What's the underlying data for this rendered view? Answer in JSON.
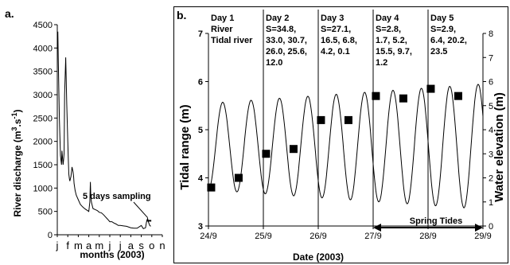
{
  "chart_data": [
    {
      "panel": "a.",
      "type": "line",
      "ylabel": "River discharge (m 3.s-1)",
      "ylabel_main": "River discharge (m",
      "ylabel_sup": "3",
      "ylabel_unit": ".s",
      "ylabel_sup2": "-1",
      "ylabel_close": ")",
      "xlabel": "months (2003)",
      "ylim": [
        0,
        4500
      ],
      "yticks": [
        "0",
        "500",
        "1000",
        "1500",
        "2000",
        "2500",
        "3000",
        "3500",
        "4000",
        "4500"
      ],
      "ytick_values": [
        0,
        500,
        1000,
        1500,
        2000,
        2500,
        3000,
        3500,
        4000,
        4500
      ],
      "xlim": [
        0,
        10
      ],
      "xticks": [
        "j",
        "f",
        "m",
        "a",
        "m",
        "j",
        "j",
        "a",
        "s",
        "o",
        "n"
      ],
      "annotation": "5 days sampling",
      "annotation_x": 8.6,
      "annotation_y": 300,
      "series": [
        {
          "x": [
            0,
            0.05,
            0.1,
            0.2,
            0.25,
            0.3,
            0.35,
            0.4,
            0.45,
            0.5,
            0.55,
            0.6,
            0.65,
            0.7,
            0.8,
            0.9,
            1.0,
            1.05,
            1.1,
            1.15,
            1.2,
            1.3,
            1.4,
            1.5,
            1.55,
            1.6,
            1.7,
            1.8,
            1.9,
            2.0,
            2.1,
            2.2,
            2.4,
            2.6,
            2.8,
            3.0,
            3.1,
            3.15,
            3.2,
            3.25,
            3.3,
            3.4,
            3.6,
            3.8,
            4.0,
            4.2,
            4.4,
            4.6,
            4.8,
            5.0,
            5.2,
            5.4,
            5.6,
            5.8,
            6.0,
            6.3,
            6.6,
            7.0,
            7.3,
            7.6,
            8.0,
            8.2,
            8.4,
            8.5,
            8.6,
            8.7,
            8.8,
            8.9
          ],
          "y": [
            4200,
            4350,
            3700,
            2500,
            2100,
            1700,
            1600,
            1500,
            1800,
            1650,
            1500,
            1600,
            1750,
            3000,
            3800,
            2800,
            2000,
            1600,
            1300,
            1200,
            1150,
            1250,
            1450,
            1350,
            1250,
            1100,
            950,
            850,
            800,
            750,
            700,
            650,
            600,
            560,
            530,
            500,
            700,
            1130,
            800,
            700,
            650,
            560,
            540,
            520,
            480,
            470,
            430,
            380,
            330,
            280,
            280,
            250,
            230,
            200,
            200,
            190,
            180,
            150,
            140,
            140,
            200,
            130,
            150,
            280,
            350,
            260,
            200,
            180
          ]
        }
      ]
    },
    {
      "panel": "b.",
      "type": "line",
      "xlabel": "Date (2003)",
      "ylabel": "Tidal range (m)",
      "y2label": "Water elevation (m)",
      "ylim": [
        3,
        7
      ],
      "yticks": [
        "3",
        "4",
        "5",
        "6",
        "7"
      ],
      "ytick_values": [
        3,
        4,
        5,
        6,
        7
      ],
      "y2lim": [
        0,
        8
      ],
      "y2ticks": [
        "0",
        "1",
        "2",
        "3",
        "4",
        "5",
        "6",
        "7",
        "8"
      ],
      "y2tick_values": [
        0,
        1,
        2,
        3,
        4,
        5,
        6,
        7,
        8
      ],
      "xlim": [
        0,
        5
      ],
      "xticks": [
        "24/9",
        "25/9",
        "26/9",
        "27/9",
        "28/9",
        "29/9"
      ],
      "day_dividers": [
        1,
        2,
        3,
        4
      ],
      "days": [
        {
          "title": "Day 1",
          "lines": [
            "River",
            "Tidal river"
          ]
        },
        {
          "title": "Day 2",
          "lines": [
            "S=34.8,",
            "33.0, 30.7,",
            "26.0, 25.6,",
            "12.0"
          ]
        },
        {
          "title": "Day 3",
          "lines": [
            "S=27.1,",
            "16.5, 6.8,",
            "4.2, 0.1"
          ]
        },
        {
          "title": "Day 4",
          "lines": [
            "S=2.8,",
            "1.7, 5.2,",
            "15.5, 9.7,",
            "1.2"
          ]
        },
        {
          "title": "Day 5",
          "lines": [
            "S=2.9,",
            "6.4, 20.2,",
            "23.5"
          ]
        }
      ],
      "tidal_range_points": {
        "x": [
          0.05,
          0.55,
          1.05,
          1.55,
          2.05,
          2.55,
          3.05,
          3.55,
          4.05,
          4.55
        ],
        "y": [
          3.8,
          4.0,
          4.5,
          4.6,
          5.2,
          5.2,
          5.7,
          5.65,
          5.85,
          5.7
        ]
      },
      "water_elevation": {
        "mean": 3.3,
        "amp_start": 1.8,
        "amp_end": 2.6,
        "period_days": 0.517,
        "phase_days": 0.13
      },
      "spring_tides_label": "Spring Tides",
      "spring_tides_range": [
        3,
        5
      ]
    }
  ]
}
